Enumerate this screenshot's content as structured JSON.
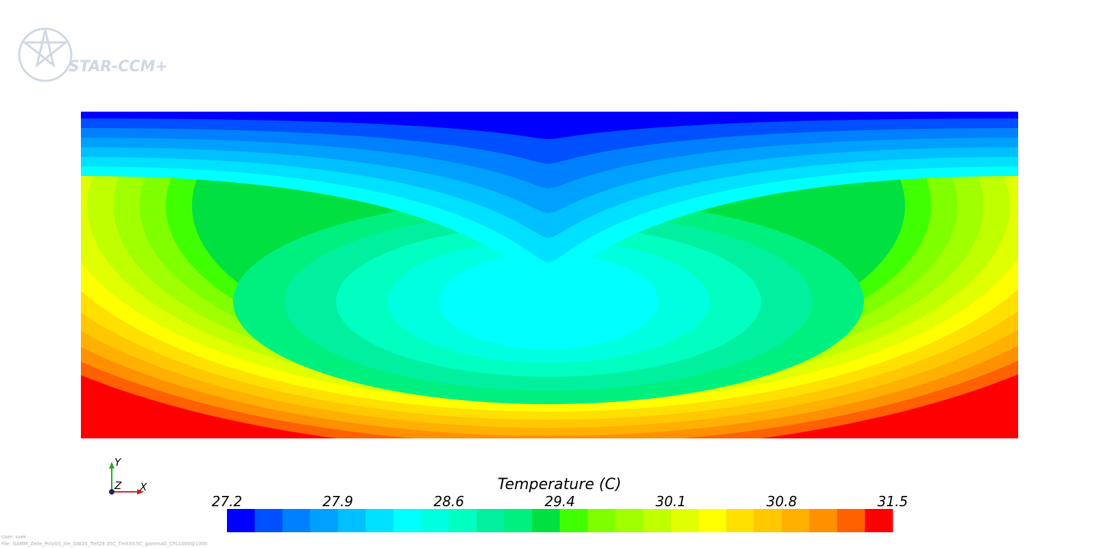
{
  "logo": {
    "text": "STAR-CCM+"
  },
  "colorbar": {
    "title": "Temperature (C)",
    "ticks": [
      27.2,
      27.9,
      28.6,
      29.4,
      30.1,
      30.8,
      31.5
    ]
  },
  "axes_triad": {
    "y": "Y",
    "z": "Z",
    "x": "X"
  },
  "footer": {
    "user": "User: ssek",
    "file": "File: GAMM_Zelle_PolyGS_Ilie_GW20_Tref29.35C_Tinit30.5C_gammaD_CFL1000@1000"
  }
}
